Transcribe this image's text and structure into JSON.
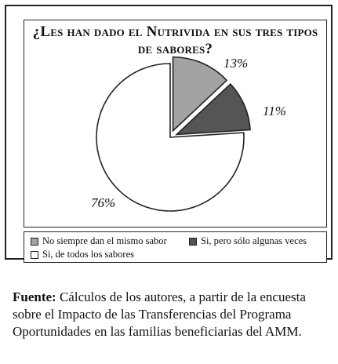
{
  "colors": {
    "frame": "#222222",
    "slice_1": "#a3a3a3",
    "slice_2": "#555555",
    "slice_3": "#ffffff"
  },
  "chart_data": {
    "type": "pie",
    "title_lines": [
      "¿Les han dado el Nutrivida en sus tres tipos",
      "de sabores?"
    ],
    "slices": [
      {
        "label": "No siempre dan el mismo sabor",
        "value": 13,
        "value_label": "13%",
        "color": "#a3a3a3",
        "exploded": true
      },
      {
        "label": "Si, pero sólo algunas veces",
        "value": 11,
        "value_label": "11%",
        "color": "#555555",
        "exploded": true
      },
      {
        "label": "Si, de todos los sabores",
        "value": 76,
        "value_label": "76%",
        "color": "#ffffff",
        "exploded": false
      }
    ],
    "legend_position": "bottom"
  },
  "source": {
    "label": "Fuente:",
    "text": " Cálculos de los autores, a partir de la encuesta sobre el Impacto de las Transferencias del Programa Oportunidades en las familias beneficiarias del AMM."
  }
}
